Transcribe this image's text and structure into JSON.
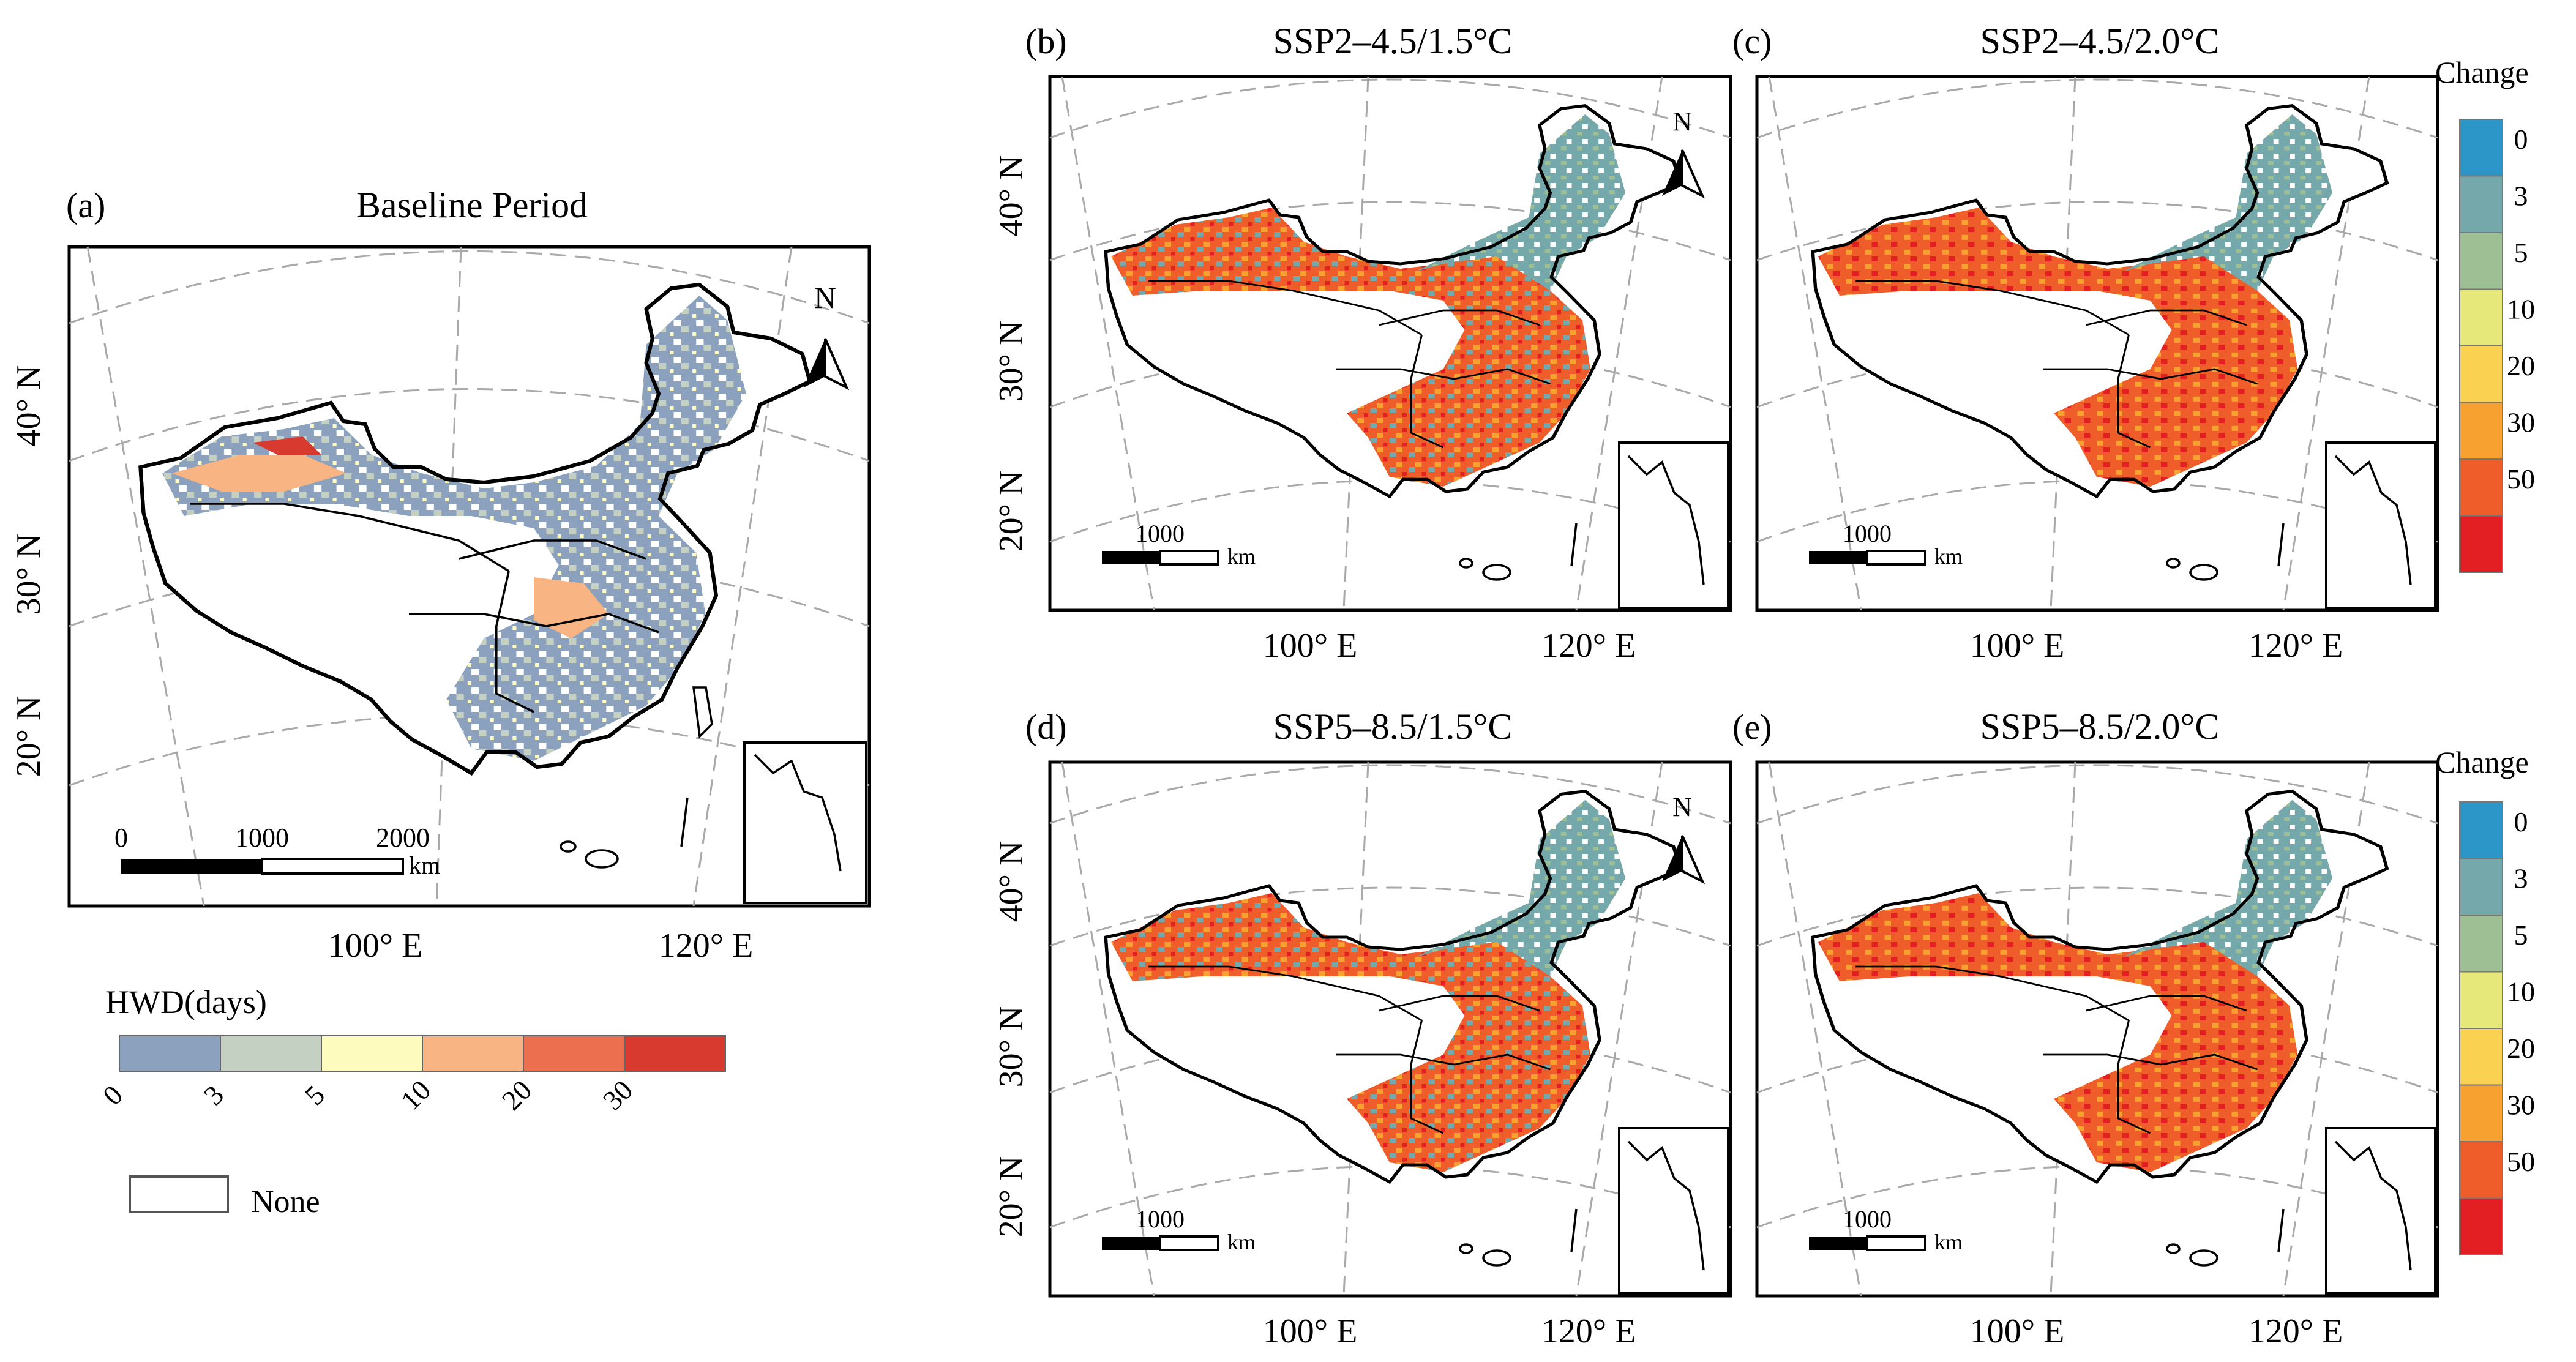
{
  "figure": {
    "panels": [
      {
        "id": "a",
        "letter": "(a)",
        "title": "Baseline Period",
        "lat_labels": [
          "40° N",
          "30° N",
          "20° N"
        ],
        "lon_labels": [
          "100° E",
          "120° E"
        ],
        "north": "N",
        "scale_ticks": [
          "0",
          "1000",
          "2000"
        ],
        "scale_unit": "km",
        "scheme": "baseline"
      },
      {
        "id": "b",
        "letter": "(b)",
        "title": "SSP2–4.5/1.5°C",
        "lat_labels": [
          "40° N",
          "30° N",
          "20° N"
        ],
        "lon_labels": [
          "100° E",
          "120° E"
        ],
        "north": "N",
        "scale_ticks": [
          "1000"
        ],
        "scale_unit": "km",
        "scheme": "change_moderate"
      },
      {
        "id": "c",
        "letter": "(c)",
        "title": "SSP2–4.5/2.0°C",
        "lat_labels": [],
        "lon_labels": [
          "100° E",
          "120° E"
        ],
        "north": "",
        "scale_ticks": [
          "1000"
        ],
        "scale_unit": "km",
        "scheme": "change_strong"
      },
      {
        "id": "d",
        "letter": "(d)",
        "title": "SSP5–8.5/1.5°C",
        "lat_labels": [
          "40° N",
          "30° N",
          "20° N"
        ],
        "lon_labels": [
          "100° E",
          "120° E"
        ],
        "north": "N",
        "scale_ticks": [
          "1000"
        ],
        "scale_unit": "km",
        "scheme": "change_moderate"
      },
      {
        "id": "e",
        "letter": "(e)",
        "title": "SSP5–8.5/2.0°C",
        "lat_labels": [],
        "lon_labels": [
          "100° E",
          "120° E"
        ],
        "north": "",
        "scale_ticks": [
          "1000"
        ],
        "scale_unit": "km",
        "scheme": "change_strong"
      }
    ],
    "baseline_legend": {
      "title": "HWD(days)",
      "ticks": [
        "0",
        "3",
        "5",
        "10",
        "20",
        "30"
      ],
      "colors": [
        "#8ca1bd",
        "#c4d0c2",
        "#fdfbbe",
        "#f9b484",
        "#ec6f50",
        "#d83a2f"
      ],
      "none_label": "None"
    },
    "change_legends": [
      {
        "title": "Change",
        "ticks": [
          "0",
          "3",
          "5",
          "10",
          "20",
          "30",
          "50"
        ],
        "colors": [
          "#2c96c9",
          "#74a8ab",
          "#9ebf93",
          "#e7e87a",
          "#fbd152",
          "#f7a131",
          "#ef5d2a",
          "#e41f24"
        ]
      },
      {
        "title": "Change",
        "ticks": [
          "0",
          "3",
          "5",
          "10",
          "20",
          "30",
          "50"
        ],
        "colors": [
          "#2c96c9",
          "#74a8ab",
          "#9ebf93",
          "#e7e87a",
          "#fbd152",
          "#f7a131",
          "#ef5d2a",
          "#e41f24"
        ]
      }
    ]
  }
}
